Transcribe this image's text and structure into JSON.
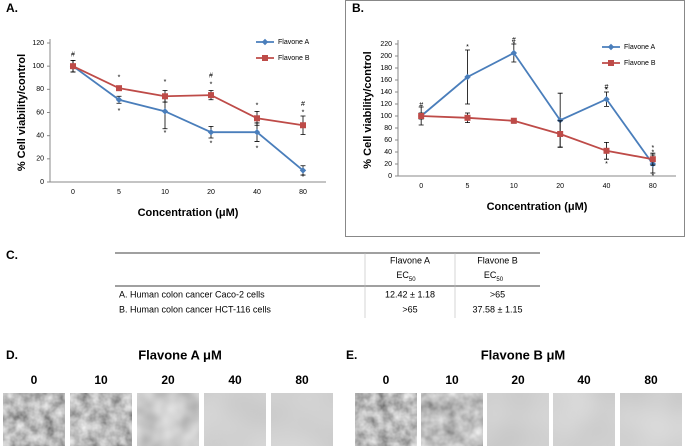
{
  "panels": {
    "A": "A.",
    "B": "B.",
    "C": "C.",
    "D": "D.",
    "E": "E."
  },
  "chart_data": [
    {
      "type": "line",
      "ylabel": "% Cell viability/control",
      "xlabel": "Concentration (μM)",
      "categories": [
        "0",
        "5",
        "10",
        "20",
        "40",
        "80"
      ],
      "ylim": [
        0,
        120
      ],
      "yticks": [
        0,
        20,
        40,
        60,
        80,
        100,
        120
      ],
      "legend": "upper right",
      "series": [
        {
          "name": "Flavone A",
          "color": "#4a7ebb",
          "marker": "diamond",
          "values": [
            100,
            71,
            61,
            43,
            43,
            10
          ],
          "errors": [
            5,
            3,
            15,
            5,
            8,
            4
          ]
        },
        {
          "name": "Flavone B",
          "color": "#be4b48",
          "marker": "square",
          "values": [
            100,
            81,
            74,
            75,
            55,
            49
          ],
          "errors": [
            5,
            2,
            5,
            4,
            6,
            8
          ]
        }
      ],
      "annotations": [
        {
          "x": "0",
          "y": 110,
          "text": "#"
        },
        {
          "x": "5",
          "y": 90,
          "text": "*"
        },
        {
          "x": "5",
          "y": 61,
          "text": "*"
        },
        {
          "x": "10",
          "y": 86,
          "text": "*"
        },
        {
          "x": "10",
          "y": 42,
          "text": "*"
        },
        {
          "x": "20",
          "y": 92,
          "text": "#"
        },
        {
          "x": "20",
          "y": 84,
          "text": "*"
        },
        {
          "x": "20",
          "y": 33,
          "text": "*"
        },
        {
          "x": "40",
          "y": 66,
          "text": "*"
        },
        {
          "x": "40",
          "y": 29,
          "text": "*"
        },
        {
          "x": "80",
          "y": 67,
          "text": "#"
        },
        {
          "x": "80",
          "y": 60,
          "text": "*"
        },
        {
          "x": "80",
          "y": 4,
          "text": "*"
        }
      ]
    },
    {
      "type": "line",
      "ylabel": "% Cell viability/control",
      "xlabel": "Concentration (μM)",
      "categories": [
        "0",
        "5",
        "10",
        "20",
        "40",
        "80"
      ],
      "ylim": [
        0,
        220
      ],
      "yticks": [
        0,
        20,
        40,
        60,
        80,
        100,
        120,
        140,
        160,
        180,
        200,
        220
      ],
      "legend": "upper right",
      "series": [
        {
          "name": "Flavone A",
          "color": "#4a7ebb",
          "marker": "diamond",
          "values": [
            100,
            165,
            205,
            93,
            128,
            20
          ],
          "errors": [
            15,
            45,
            15,
            45,
            12,
            15
          ]
        },
        {
          "name": "Flavone B",
          "color": "#be4b48",
          "marker": "square",
          "values": [
            100,
            97,
            92,
            70,
            42,
            28
          ],
          "errors": [
            5,
            8,
            4,
            22,
            14,
            10
          ]
        }
      ],
      "annotations": [
        {
          "x": "0",
          "y": 118,
          "text": "#"
        },
        {
          "x": "5",
          "y": 215,
          "text": "*"
        },
        {
          "x": "10",
          "y": 226,
          "text": "#"
        },
        {
          "x": "10",
          "y": 220,
          "text": "*"
        },
        {
          "x": "40",
          "y": 148,
          "text": "#"
        },
        {
          "x": "40",
          "y": 143,
          "text": "*"
        },
        {
          "x": "40",
          "y": 20,
          "text": "*"
        },
        {
          "x": "80",
          "y": 46,
          "text": "*"
        },
        {
          "x": "80",
          "y": 39,
          "text": "*"
        },
        {
          "x": "80",
          "y": 0,
          "text": "*"
        }
      ]
    }
  ],
  "table": {
    "header": [
      "Flavone A",
      "Flavone B"
    ],
    "subheader": [
      {
        "text": "EC",
        "sub": "50"
      },
      {
        "text": "EC",
        "sub": "50"
      }
    ],
    "rows": [
      [
        "A. Human colon cancer Caco-2 cells",
        "12.42  ±  1.18",
        ">65"
      ],
      [
        "B. Human colon cancer HCT-116 cells",
        ">65",
        "37.58  ±  1.15"
      ]
    ]
  },
  "micrographs": [
    {
      "title": "Flavone A μM",
      "labels": [
        "0",
        "10",
        "20",
        "40",
        "80"
      ]
    },
    {
      "title": "Flavone B μM",
      "labels": [
        "0",
        "10",
        "20",
        "40",
        "80"
      ]
    }
  ]
}
